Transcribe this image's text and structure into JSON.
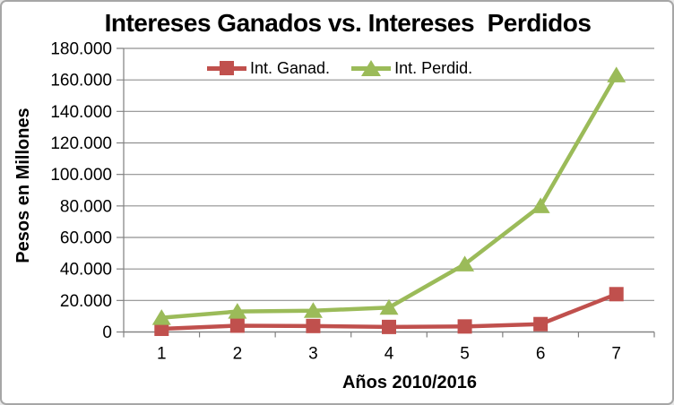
{
  "colors": {
    "background": "#ffffff",
    "frame_border": "#a6a6a6",
    "grid": "#909090",
    "axis": "#808080",
    "text": "#000000"
  },
  "chart_data": {
    "type": "line",
    "title": "Intereses Ganados vs. Intereses  Perdidos",
    "xlabel": "Años 2010/2016",
    "ylabel": "Pesos en Millones",
    "categories": [
      "1",
      "2",
      "3",
      "4",
      "5",
      "6",
      "7"
    ],
    "ylim": [
      0,
      180000
    ],
    "ytick_step": 20000,
    "ytick_labels": [
      "0",
      "20.000",
      "40.000",
      "60.000",
      "80.000",
      "100.000",
      "120.000",
      "140.000",
      "160.000",
      "180.000"
    ],
    "grid": true,
    "legend_position": "top-inside",
    "series": [
      {
        "name": "Int. Ganad.",
        "marker": "square",
        "color": "#c0504d",
        "values": [
          2000,
          4000,
          3800,
          3200,
          3500,
          5000,
          24000
        ]
      },
      {
        "name": "Int. Perdid.",
        "marker": "triangle",
        "color": "#9bbb59",
        "values": [
          9000,
          13000,
          13500,
          15500,
          43000,
          80000,
          163000
        ]
      }
    ]
  }
}
